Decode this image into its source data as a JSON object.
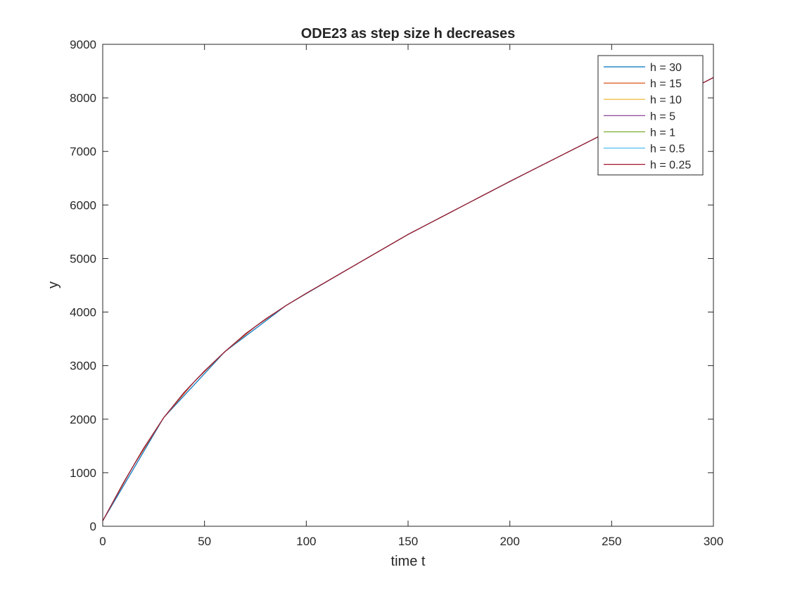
{
  "chart_data": {
    "type": "line",
    "title": "ODE23 as step size h decreases",
    "xlabel": "time t",
    "ylabel": "y",
    "xlim": [
      0,
      300
    ],
    "ylim": [
      0,
      9000
    ],
    "xticks": [
      0,
      50,
      100,
      150,
      200,
      250,
      300
    ],
    "yticks": [
      0,
      1000,
      2000,
      3000,
      4000,
      5000,
      6000,
      7000,
      8000,
      9000
    ],
    "grid": false,
    "legend_position": "top-right",
    "series": [
      {
        "name": "h = 30",
        "color": "#0072BD",
        "step": 30
      },
      {
        "name": "h = 15",
        "color": "#D95319",
        "step": 15
      },
      {
        "name": "h = 10",
        "color": "#EDB120",
        "step": 10
      },
      {
        "name": "h = 5",
        "color": "#7E2F8E",
        "step": 5
      },
      {
        "name": "h = 1",
        "color": "#77AC30",
        "step": 1
      },
      {
        "name": "h = 0.5",
        "color": "#4DBEEE",
        "step": 0.5
      },
      {
        "name": "h = 0.25",
        "color": "#A2142F",
        "step": 0.25
      }
    ],
    "reference_curve": {
      "x": [
        0,
        10,
        20,
        30,
        40,
        50,
        60,
        70,
        80,
        90,
        100,
        120,
        150,
        200,
        250,
        300
      ],
      "y": [
        100,
        800,
        1450,
        2030,
        2500,
        2900,
        3260,
        3590,
        3870,
        4120,
        4350,
        4790,
        5450,
        6440,
        7400,
        8380
      ]
    }
  }
}
